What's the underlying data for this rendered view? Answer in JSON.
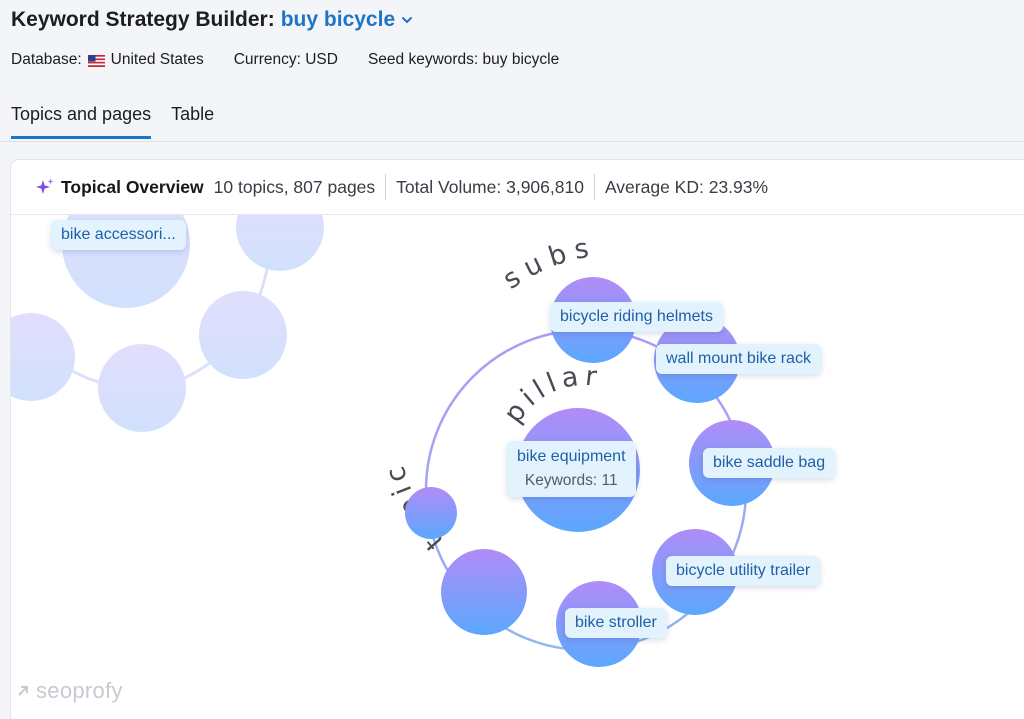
{
  "header": {
    "title_prefix": "Keyword Strategy Builder:",
    "title_seed": "buy bicycle",
    "meta": {
      "database_label": "Database:",
      "database_value": "United States",
      "currency": "Currency: USD",
      "seed_keywords": "Seed keywords: buy bicycle"
    },
    "tabs": [
      {
        "label": "Topics and pages",
        "active": true
      },
      {
        "label": "Table",
        "active": false
      }
    ]
  },
  "overview": {
    "title": "Topical Overview",
    "counts": "10 topics, 807 pages",
    "total_volume": "Total Volume: 3,906,810",
    "average_kd": "Average KD: 23.93%"
  },
  "graph": {
    "ring_label_topic": "topic",
    "ring_label_subs": "subs",
    "pillar_label": "pillar",
    "pillar": {
      "name": "bike equipment",
      "keywords": "Keywords: 11"
    },
    "subtopics": [
      "bicycle riding helmets",
      "wall mount bike rack",
      "bike saddle bag",
      "bicycle utility trailer",
      "bike stroller"
    ],
    "other_cluster_label": "bike accessori..."
  },
  "watermark": "seoprofy",
  "colors": {
    "accent": "#1e74c6",
    "bubble_purple": "#a78bfa",
    "bubble_blue": "#5aa8ff",
    "chip_bg": "#e3f3fd",
    "chip_text": "#1e5fa8"
  }
}
